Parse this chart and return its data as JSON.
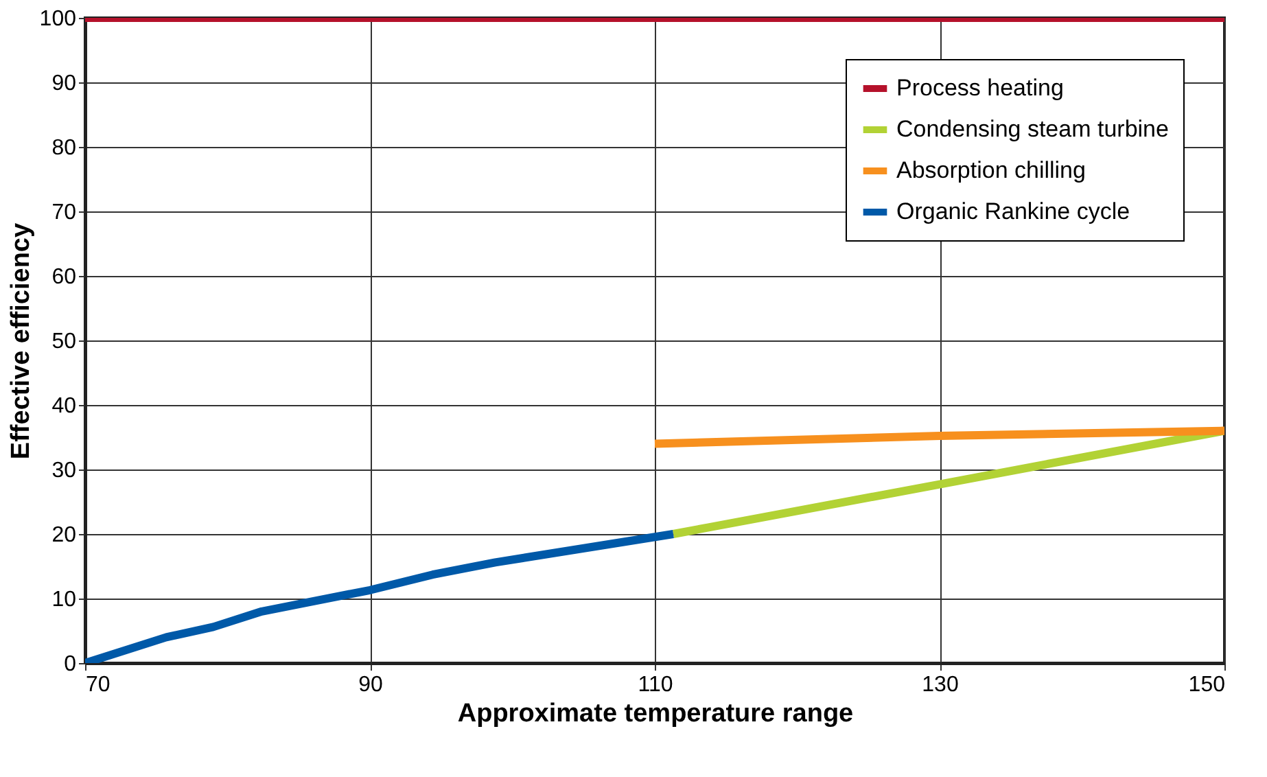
{
  "chart_data": {
    "type": "line",
    "xlabel": "Approximate temperature range",
    "ylabel": "Effective efficiency",
    "series": [
      {
        "name": "Process heating",
        "color": "#b5112b",
        "x": [
          70,
          150
        ],
        "values": [
          100,
          100
        ]
      },
      {
        "name": "Condensing steam turbine",
        "color": "#b2d235",
        "x": [
          111.3,
          130,
          150
        ],
        "values": [
          20,
          27.7,
          36
        ]
      },
      {
        "name": "Absorption chilling",
        "color": "#f7901e",
        "x": [
          110,
          130,
          150
        ],
        "values": [
          34,
          35.2,
          36
        ]
      },
      {
        "name": "Organic Rankine cycle",
        "color": "#0059a8",
        "x": [
          70,
          75.7,
          79,
          82.4,
          90,
          94.4,
          98.8,
          111.3
        ],
        "values": [
          0,
          4.0,
          5.6,
          8.0,
          11.3,
          13.7,
          15.6,
          20
        ]
      }
    ],
    "xlim": [
      70,
      150
    ],
    "xticks": [
      70,
      90,
      110,
      130,
      150
    ],
    "ylim": [
      0,
      100
    ],
    "yticks": [
      0,
      10,
      20,
      30,
      40,
      50,
      60,
      70,
      80,
      90,
      100
    ],
    "grid": true,
    "legend": "top right",
    "marker": "none",
    "line_style": "solid"
  }
}
